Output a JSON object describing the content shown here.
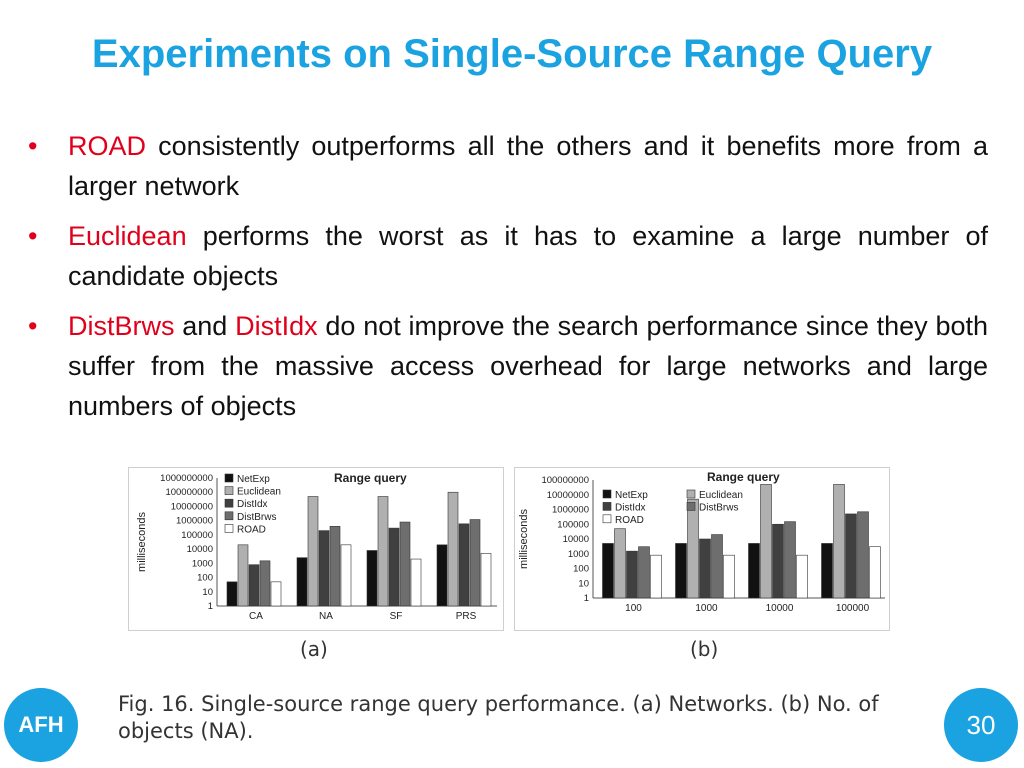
{
  "slide": {
    "title": "Experiments on Single-Source Range Query",
    "bullets": [
      {
        "highlight": "ROAD",
        "text": " consistently outperforms all the others and it benefits more from a larger network"
      },
      {
        "highlight": "Euclidean",
        "text": " performs the worst as it has to examine a large number of candidate objects"
      },
      {
        "highlight": "DistBrws",
        "mid": " and ",
        "highlight2": "DistIdx",
        "text": " do not improve the search performance since they both suffer from the massive access overhead for large networks and large numbers of objects"
      }
    ],
    "bullet_symbol": "•",
    "caption": "Fig. 16. Single-source range query performance. (a) Networks. (b) No. of objects (NA).",
    "logo_text": "AFH",
    "page_number": "30",
    "colors": {
      "title": "#1aa3e0",
      "highlight": "#e0001b",
      "badge": "#1aa3e0"
    }
  },
  "chart_data": [
    {
      "type": "bar",
      "panel_label": "(a)",
      "title": "Range query",
      "ylabel": "milliseconds",
      "xlabel": "",
      "yscale": "log",
      "ylim": [
        1,
        1000000000
      ],
      "ytick_labels": [
        "1000000000",
        "100000000",
        "10000000",
        "1000000",
        "100000",
        "10000",
        "1000",
        "100",
        "10",
        "1"
      ],
      "legend_position": "top-left",
      "categories": [
        "CA",
        "NA",
        "SF",
        "PRS"
      ],
      "series": [
        {
          "name": "NetExp",
          "color": "#111111",
          "values": [
            50,
            2500,
            8000,
            20000
          ]
        },
        {
          "name": "Euclidean",
          "color": "#b0b0b0",
          "values": [
            20000,
            50000000,
            50000000,
            100000000
          ]
        },
        {
          "name": "DistIdx",
          "color": "#404040",
          "values": [
            800,
            200000,
            300000,
            600000
          ]
        },
        {
          "name": "DistBrws",
          "color": "#6e6e6e",
          "values": [
            1500,
            400000,
            800000,
            1200000
          ]
        },
        {
          "name": "ROAD",
          "color": "#ffffff",
          "values": [
            50,
            20000,
            2000,
            5000
          ]
        }
      ]
    },
    {
      "type": "bar",
      "panel_label": "(b)",
      "title": "Range query",
      "ylabel": "milliseconds",
      "xlabel": "",
      "yscale": "log",
      "ylim": [
        1,
        100000000
      ],
      "ytick_labels": [
        "100000000",
        "10000000",
        "1000000",
        "100000",
        "10000",
        "1000",
        "100",
        "10",
        "1"
      ],
      "legend_position": "top",
      "categories": [
        "100",
        "1000",
        "10000",
        "100000"
      ],
      "series": [
        {
          "name": "NetExp",
          "color": "#111111",
          "values": [
            5000,
            5000,
            5000,
            5000
          ]
        },
        {
          "name": "Euclidean",
          "color": "#b0b0b0",
          "values": [
            50000,
            5000000,
            50000000,
            50000000
          ]
        },
        {
          "name": "DistIdx",
          "color": "#404040",
          "values": [
            1500,
            10000,
            100000,
            500000
          ]
        },
        {
          "name": "DistBrws",
          "color": "#6e6e6e",
          "values": [
            3000,
            20000,
            150000,
            700000
          ]
        },
        {
          "name": "ROAD",
          "color": "#ffffff",
          "values": [
            800,
            800,
            800,
            3000
          ]
        }
      ]
    }
  ]
}
